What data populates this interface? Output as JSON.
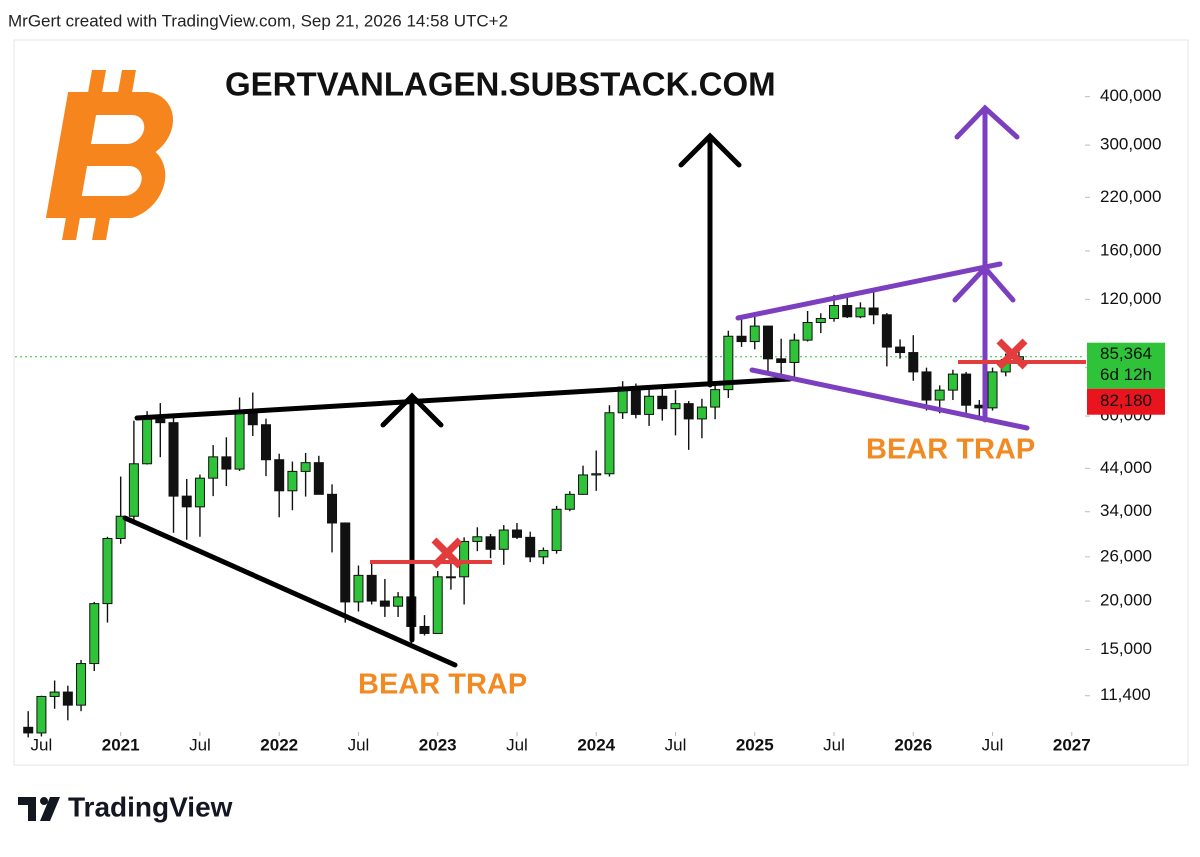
{
  "header": "MrGert created with TradingView.com, Sep 21, 2026 14:58 UTC+2",
  "footer": "TradingView",
  "chart_data": {
    "type": "candlestick",
    "title": "GERTVANLAGEN.SUBSTACK.COM",
    "annotations": [
      "BEAR TRAP",
      "BEAR TRAP"
    ],
    "log_scale": true,
    "up_color": "#2fc33a",
    "down_color": "#111111",
    "x": [
      "2020-06",
      "2020-07",
      "2020-08",
      "2020-09",
      "2020-10",
      "2020-11",
      "2020-12",
      "2021-01",
      "2021-02",
      "2021-03",
      "2021-04",
      "2021-05",
      "2021-06",
      "2021-07",
      "2021-08",
      "2021-09",
      "2021-10",
      "2021-11",
      "2021-12",
      "2022-01",
      "2022-02",
      "2022-03",
      "2022-04",
      "2022-05",
      "2022-06",
      "2022-07",
      "2022-08",
      "2022-09",
      "2022-10",
      "2022-11",
      "2022-12",
      "2023-01",
      "2023-02",
      "2023-03",
      "2023-04",
      "2023-05",
      "2023-06",
      "2023-07",
      "2023-08",
      "2023-09",
      "2023-10",
      "2023-11",
      "2023-12",
      "2024-01",
      "2024-02",
      "2024-03",
      "2024-04",
      "2024-05",
      "2024-06",
      "2024-07",
      "2024-08",
      "2024-09",
      "2024-10",
      "2024-11",
      "2024-12",
      "2025-01",
      "2025-02",
      "2025-03",
      "2025-04",
      "2025-05",
      "2025-06",
      "2025-07",
      "2025-08",
      "2025-09",
      "2025-10",
      "2025-11",
      "2025-12",
      "2026-01",
      "2026-02",
      "2026-03",
      "2026-04",
      "2026-05",
      "2026-06",
      "2026-07",
      "2026-08",
      "2026-09"
    ],
    "open": [
      9450,
      9140,
      11350,
      11650,
      10780,
      13800,
      19700,
      29000,
      33100,
      45200,
      58800,
      57700,
      37300,
      35000,
      41500,
      47100,
      43800,
      61300,
      57000,
      46300,
      38500,
      43200,
      45500,
      37700,
      31800,
      19900,
      23300,
      20000,
      19400,
      20500,
      17200,
      16500,
      23100,
      23100,
      28500,
      29300,
      27200,
      30500,
      29200,
      26000,
      27000,
      34500,
      37700,
      42300,
      42600,
      61200,
      71300,
      60600,
      67500,
      62700,
      64600,
      59000,
      63300,
      70200,
      96400,
      93400,
      102400,
      84300,
      82500,
      94200,
      104600,
      107100,
      115700,
      108200,
      114000,
      109500,
      90400,
      87500,
      78000,
      66000,
      70000,
      77000,
      64000,
      63000,
      78000,
      84000
    ],
    "high": [
      10400,
      11400,
      12480,
      12100,
      14100,
      19900,
      29300,
      41900,
      58400,
      61800,
      64800,
      59500,
      41300,
      42400,
      50500,
      52900,
      67000,
      69000,
      59100,
      48000,
      45800,
      48200,
      47400,
      40000,
      31900,
      24700,
      25200,
      22800,
      21100,
      21500,
      18400,
      23900,
      25200,
      29200,
      31000,
      29800,
      31400,
      31800,
      30200,
      27500,
      35200,
      38400,
      44700,
      48900,
      64000,
      73800,
      72800,
      71900,
      72000,
      70000,
      65600,
      66500,
      73600,
      99600,
      108300,
      109600,
      102500,
      95000,
      97900,
      112000,
      110500,
      123200,
      124500,
      117900,
      126200,
      110600,
      94600,
      97000,
      80000,
      72000,
      79000,
      78000,
      66000,
      80000,
      87000,
      88000
    ],
    "low": [
      8900,
      8950,
      10550,
      9850,
      10400,
      13200,
      17600,
      28100,
      32300,
      45000,
      47000,
      30000,
      28800,
      29300,
      37300,
      39600,
      43300,
      53300,
      42000,
      32900,
      34300,
      37200,
      37700,
      26700,
      17600,
      18800,
      19600,
      18200,
      18200,
      15500,
      16300,
      16500,
      21400,
      19600,
      26900,
      25800,
      24800,
      28900,
      25200,
      24900,
      26500,
      34100,
      37600,
      38500,
      41900,
      59000,
      59200,
      56600,
      58400,
      53500,
      49100,
      52600,
      58900,
      66800,
      90500,
      89200,
      78200,
      76600,
      74500,
      93400,
      98200,
      105100,
      107400,
      107300,
      103500,
      80600,
      84400,
      74000,
      62000,
      61000,
      66000,
      60000,
      59000,
      62000,
      76000,
      81000
    ],
    "close": [
      9140,
      11350,
      11650,
      10780,
      13800,
      19700,
      29000,
      33100,
      45200,
      58800,
      57700,
      37300,
      35000,
      41500,
      47100,
      43800,
      61300,
      57000,
      46300,
      38500,
      43200,
      45500,
      37700,
      31800,
      19900,
      23300,
      20000,
      19400,
      20500,
      17200,
      16500,
      23100,
      23100,
      28500,
      29300,
      27200,
      30500,
      29200,
      26000,
      27000,
      34500,
      37700,
      42300,
      42600,
      61200,
      71300,
      60600,
      67500,
      62700,
      64600,
      59000,
      63300,
      70200,
      96400,
      93400,
      102400,
      84300,
      82500,
      94200,
      104600,
      107100,
      115700,
      108200,
      114000,
      109500,
      90400,
      87500,
      78000,
      66000,
      70000,
      77000,
      64000,
      63000,
      78000,
      84000,
      85364
    ],
    "xlim": [
      "2020-05",
      "2027-02"
    ],
    "xticks": [
      {
        "value": "2020-07",
        "label": "Jul"
      },
      {
        "value": "2021-01",
        "label": "2021"
      },
      {
        "value": "2021-07",
        "label": "Jul"
      },
      {
        "value": "2022-01",
        "label": "2022"
      },
      {
        "value": "2022-07",
        "label": "Jul"
      },
      {
        "value": "2023-01",
        "label": "2023"
      },
      {
        "value": "2023-07",
        "label": "Jul"
      },
      {
        "value": "2024-01",
        "label": "2024"
      },
      {
        "value": "2024-07",
        "label": "Jul"
      },
      {
        "value": "2025-01",
        "label": "2025"
      },
      {
        "value": "2025-07",
        "label": "Jul"
      },
      {
        "value": "2026-01",
        "label": "2026"
      },
      {
        "value": "2026-07",
        "label": "Jul"
      },
      {
        "value": "2027-01",
        "label": "2027"
      }
    ],
    "ylim": [
      9300,
      560000
    ],
    "yticks": [
      {
        "value": 11400,
        "label": "11,400"
      },
      {
        "value": 15000,
        "label": "15,000"
      },
      {
        "value": 20000,
        "label": "20,000"
      },
      {
        "value": 26000,
        "label": "26,000"
      },
      {
        "value": 34000,
        "label": "34,000"
      },
      {
        "value": 44000,
        "label": "44,000"
      },
      {
        "value": 60000,
        "label": "60,000"
      },
      {
        "value": 80000,
        "label": "80,000"
      },
      {
        "value": 120000,
        "label": "120,000"
      },
      {
        "value": 160000,
        "label": "160,000"
      },
      {
        "value": 220000,
        "label": "220,000"
      },
      {
        "value": 300000,
        "label": "300,000"
      },
      {
        "value": 400000,
        "label": "400,000"
      }
    ],
    "last_price": {
      "value": 85364,
      "label": "85,364"
    },
    "countdown": "6d 12h",
    "second_price_label": "82,180"
  }
}
